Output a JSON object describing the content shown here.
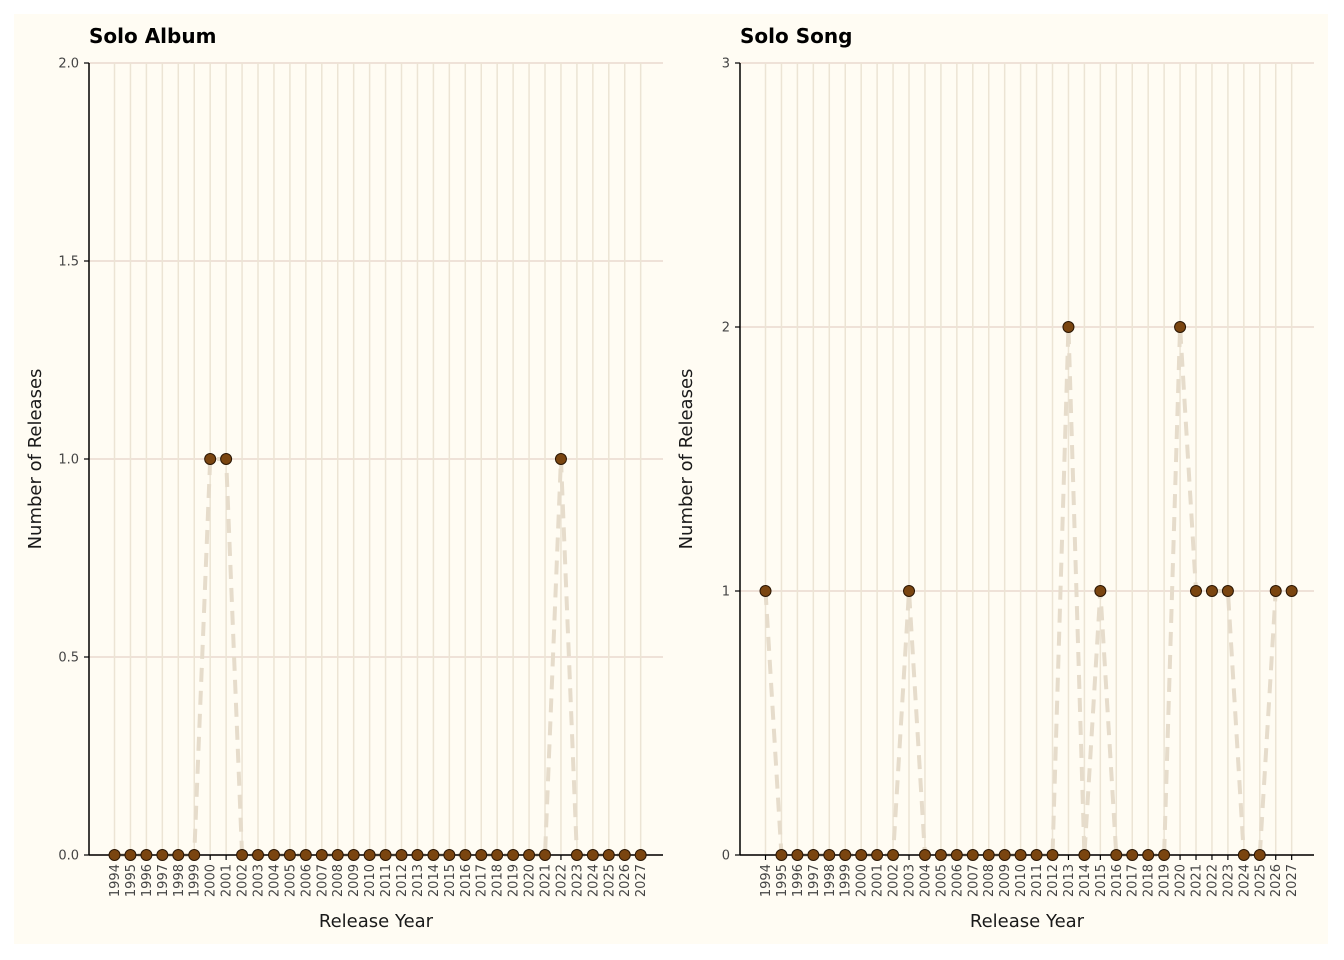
{
  "colors": {
    "background": "#fffcf3",
    "grid_horizontal": "#ead9d0",
    "grid_vertical": "#ece4d4",
    "dashed_line": "#e6dccb",
    "marker_fill": "#7a4510",
    "marker_stroke": "#2a1604",
    "axis": "#000000"
  },
  "chart_data": [
    {
      "type": "line",
      "title": "Solo Album",
      "xlabel": "Release Year",
      "ylabel": "Number of Releases",
      "ylim": [
        0,
        2
      ],
      "yticks": [
        "0.0",
        "0.5",
        "1.0",
        "1.5",
        "2.0"
      ],
      "ytick_values": [
        0,
        0.5,
        1,
        1.5,
        2
      ],
      "grid": true,
      "line_style": "dashed",
      "marker": "circle",
      "x": [
        "1994",
        "1995",
        "1996",
        "1997",
        "1998",
        "1999",
        "2000",
        "2001",
        "2002",
        "2003",
        "2004",
        "2005",
        "2006",
        "2007",
        "2008",
        "2009",
        "2010",
        "2011",
        "2012",
        "2013",
        "2014",
        "2015",
        "2016",
        "2017",
        "2018",
        "2019",
        "2020",
        "2021",
        "2022",
        "2023",
        "2024",
        "2025",
        "2026",
        "2027"
      ],
      "values": [
        0,
        0,
        0,
        0,
        0,
        0,
        1,
        1,
        0,
        0,
        0,
        0,
        0,
        0,
        0,
        0,
        0,
        0,
        0,
        0,
        0,
        0,
        0,
        0,
        0,
        0,
        0,
        0,
        1,
        0,
        0,
        0,
        0,
        0
      ]
    },
    {
      "type": "line",
      "title": "Solo Song",
      "xlabel": "Release Year",
      "ylabel": "Number of Releases",
      "ylim": [
        0,
        3
      ],
      "yticks": [
        "0",
        "1",
        "2",
        "3"
      ],
      "ytick_values": [
        0,
        1,
        2,
        3
      ],
      "grid": true,
      "line_style": "dashed",
      "marker": "circle",
      "x": [
        "1994",
        "1995",
        "1996",
        "1997",
        "1998",
        "1999",
        "2000",
        "2001",
        "2002",
        "2003",
        "2004",
        "2005",
        "2006",
        "2007",
        "2008",
        "2009",
        "2010",
        "2011",
        "2012",
        "2013",
        "2014",
        "2015",
        "2016",
        "2017",
        "2018",
        "2019",
        "2020",
        "2021",
        "2022",
        "2023",
        "2024",
        "2025",
        "2026",
        "2027"
      ],
      "values": [
        1,
        0,
        0,
        0,
        0,
        0,
        0,
        0,
        0,
        1,
        0,
        0,
        0,
        0,
        0,
        0,
        0,
        0,
        0,
        2,
        0,
        1,
        0,
        0,
        0,
        0,
        2,
        1,
        1,
        1,
        0,
        0,
        1,
        1
      ]
    }
  ]
}
